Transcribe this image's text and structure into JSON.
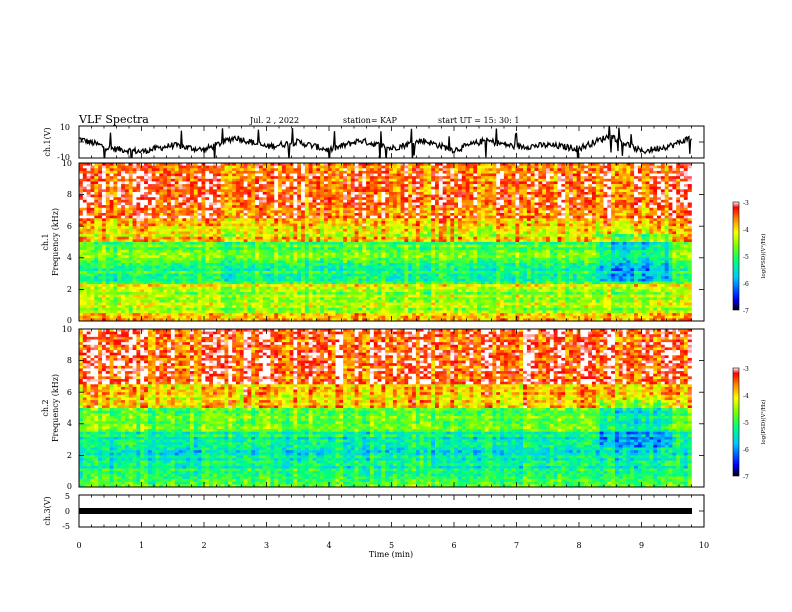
{
  "header": {
    "title": "VLF Spectra",
    "date": "Jul. 2 , 2022",
    "station": "station= KAP",
    "start": "start UT = 15: 30: 1"
  },
  "panels": {
    "ch1_wave": {
      "ylabel": "ch.1(V)",
      "yticks": [
        "10",
        "-10"
      ]
    },
    "ch1_spec": {
      "ylabel_top": "ch.1",
      "ylabel": "Frequency (kHz)",
      "yticks": [
        "0",
        "2",
        "4",
        "6",
        "8",
        "10"
      ],
      "colorbar": {
        "label": "log(PSD)(V²/Hz)",
        "ticks": [
          "-3",
          "-4",
          "-5",
          "-6",
          "-7"
        ]
      }
    },
    "ch2_spec": {
      "ylabel_top": "ch.2",
      "ylabel": "Frequency (kHz)",
      "yticks": [
        "0",
        "2",
        "4",
        "6",
        "8",
        "10"
      ],
      "colorbar": {
        "label": "log(PSD)(V²/Hz)",
        "ticks": [
          "-3",
          "-4",
          "-5",
          "-6",
          "-7"
        ]
      }
    },
    "ch3_wave": {
      "ylabel": "ch.3(V)",
      "yticks": [
        "5",
        "0",
        "-5"
      ]
    }
  },
  "xaxis": {
    "label": "Time (min)",
    "ticks": [
      "0",
      "1",
      "2",
      "3",
      "4",
      "5",
      "6",
      "7",
      "8",
      "9",
      "10"
    ]
  },
  "colors": {
    "cmap": [
      "#000000",
      "#0000ff",
      "#00c8ff",
      "#00ff80",
      "#80ff00",
      "#ffff00",
      "#ff8000",
      "#ff0000",
      "#ffffff"
    ]
  },
  "chart_data": [
    {
      "type": "line",
      "name_label": "ch.1(V)",
      "xlabel": "Time (min)",
      "ylabel": "ch.1(V)",
      "xlim": [
        0,
        9.8
      ],
      "ylim": [
        -10,
        10
      ],
      "x": [
        0,
        0.5,
        1,
        1.5,
        2,
        2.5,
        3,
        3.5,
        4,
        4.5,
        5,
        5.5,
        6,
        6.5,
        7,
        7.5,
        8,
        8.5,
        9,
        9.5,
        9.8
      ],
      "y": [
        2,
        -4,
        -6,
        -2,
        -5,
        3,
        -3,
        0,
        -5,
        1,
        -4,
        1,
        -5,
        1,
        -3,
        -2,
        -4,
        4,
        -6,
        -2,
        3
      ]
    },
    {
      "type": "heatmap",
      "name_label": "ch.1",
      "xlabel": "Time (min)",
      "ylabel": "Frequency (kHz)",
      "xlim": [
        0,
        10
      ],
      "ylim": [
        0,
        10
      ],
      "data_extent_x": [
        0,
        9.8
      ],
      "colorbar_label": "log(PSD)(V²/Hz)",
      "colorbar_range": [
        -7,
        -3
      ],
      "band_profile_khz": [
        {
          "f": [
            0,
            0.5
          ],
          "level": -4.0
        },
        {
          "f": [
            0.5,
            2.0
          ],
          "level": -4.6
        },
        {
          "f": [
            2.0,
            2.4
          ],
          "level": -4.3
        },
        {
          "f": [
            2.4,
            3.6
          ],
          "level": -5.2
        },
        {
          "f": [
            3.6,
            5.0
          ],
          "level": -4.9
        },
        {
          "f": [
            5.0,
            6.5
          ],
          "level": -4.2
        },
        {
          "f": [
            6.5,
            10.0
          ],
          "level": -3.6
        }
      ]
    },
    {
      "type": "heatmap",
      "name_label": "ch.2",
      "xlabel": "Time (min)",
      "ylabel": "Frequency (kHz)",
      "xlim": [
        0,
        10
      ],
      "ylim": [
        0,
        10
      ],
      "data_extent_x": [
        0,
        9.8
      ],
      "colorbar_label": "log(PSD)(V²/Hz)",
      "colorbar_range": [
        -7,
        -3
      ],
      "band_profile_khz": [
        {
          "f": [
            0,
            0.5
          ],
          "level": -5.0
        },
        {
          "f": [
            0.5,
            2.0
          ],
          "level": -5.3
        },
        {
          "f": [
            2.0,
            3.5
          ],
          "level": -5.4
        },
        {
          "f": [
            3.5,
            5.0
          ],
          "level": -4.8
        },
        {
          "f": [
            5.0,
            6.5
          ],
          "level": -4.1
        },
        {
          "f": [
            6.5,
            10.0
          ],
          "level": -3.5
        }
      ]
    },
    {
      "type": "line",
      "name_label": "ch.3(V)",
      "xlabel": "Time (min)",
      "ylabel": "ch.3(V)",
      "xlim": [
        0,
        9.8
      ],
      "ylim": [
        -5,
        5
      ],
      "x": [
        0,
        9.8
      ],
      "y": [
        0,
        0
      ]
    }
  ]
}
